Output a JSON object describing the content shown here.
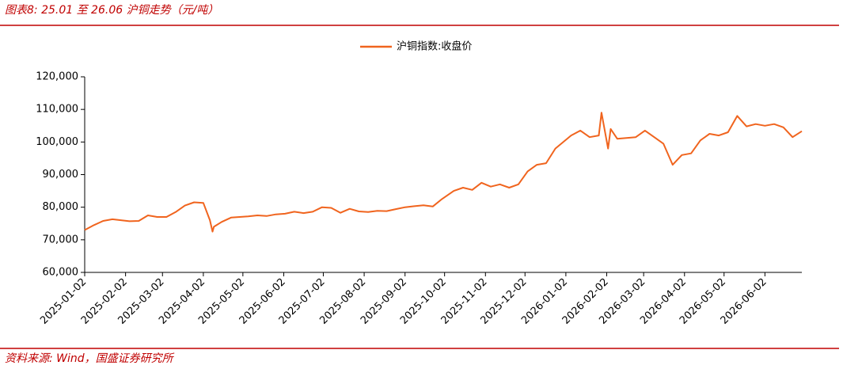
{
  "header": {
    "title": "图表8:  25.01 至 26.06 沪铜走势（元/吨）"
  },
  "footer": {
    "source": "资料来源:  Wind，国盛证券研究所"
  },
  "chart_data": {
    "type": "line",
    "x": [
      "2025-01-02",
      "2025-01-09",
      "2025-01-16",
      "2025-01-23",
      "2025-02-05",
      "2025-02-12",
      "2025-02-19",
      "2025-02-26",
      "2025-03-05",
      "2025-03-12",
      "2025-03-19",
      "2025-03-26",
      "2025-04-02",
      "2025-04-07",
      "2025-04-09",
      "2025-04-10",
      "2025-04-16",
      "2025-04-23",
      "2025-05-06",
      "2025-05-13",
      "2025-05-20",
      "2025-05-27",
      "2025-06-03",
      "2025-06-10",
      "2025-06-17",
      "2025-06-24",
      "2025-07-01",
      "2025-07-08",
      "2025-07-15",
      "2025-07-22",
      "2025-07-29",
      "2025-08-05",
      "2025-08-12",
      "2025-08-19",
      "2025-08-26",
      "2025-09-02",
      "2025-09-09",
      "2025-09-16",
      "2025-09-23",
      "2025-09-30",
      "2025-10-09",
      "2025-10-16",
      "2025-10-23",
      "2025-10-30",
      "2025-11-06",
      "2025-11-13",
      "2025-11-20",
      "2025-11-27",
      "2025-12-04",
      "2025-12-11",
      "2025-12-18",
      "2025-12-25",
      "2026-01-06",
      "2026-01-13",
      "2026-01-20",
      "2026-01-27",
      "2026-01-29",
      "2026-02-03",
      "2026-02-05",
      "2026-02-10",
      "2026-02-24",
      "2026-03-03",
      "2026-03-10",
      "2026-03-17",
      "2026-03-24",
      "2026-03-31",
      "2026-04-07",
      "2026-04-14",
      "2026-04-21",
      "2026-04-28",
      "2026-05-05",
      "2026-05-12",
      "2026-05-19",
      "2026-05-26",
      "2026-06-02",
      "2026-06-09",
      "2026-06-16",
      "2026-06-23",
      "2026-06-30"
    ],
    "series": [
      {
        "name": "沪铜指数:收盘价",
        "color": "#f0641e",
        "values": [
          73000,
          74500,
          75800,
          76300,
          75700,
          75800,
          77500,
          77000,
          77000,
          78500,
          80500,
          81500,
          81300,
          76000,
          72500,
          74000,
          75500,
          76800,
          77200,
          77500,
          77300,
          77800,
          78000,
          78600,
          78200,
          78600,
          80000,
          79800,
          78300,
          79500,
          78700,
          78500,
          78900,
          78800,
          79400,
          80000,
          80300,
          80600,
          80200,
          82500,
          85000,
          86000,
          85300,
          87500,
          86300,
          87000,
          86000,
          87000,
          91000,
          93000,
          93500,
          98000,
          102000,
          103500,
          101500,
          102000,
          109000,
          98000,
          104000,
          101000,
          101500,
          103500,
          101500,
          99500,
          93000,
          96000,
          96500,
          100500,
          102500,
          102000,
          103000,
          108000,
          104800,
          105500,
          105000,
          105500,
          104500,
          101500,
          103300
        ]
      }
    ],
    "xticks": [
      "2025-01-02",
      "2025-02-02",
      "2025-03-02",
      "2025-04-02",
      "2025-05-02",
      "2025-06-02",
      "2025-07-02",
      "2025-08-02",
      "2025-09-02",
      "2025-10-02",
      "2025-11-02",
      "2025-12-02",
      "2026-01-02",
      "2026-02-02",
      "2026-03-02",
      "2026-04-02",
      "2026-05-02",
      "2026-06-02"
    ],
    "ylim": [
      60000,
      120000
    ],
    "yticks": [
      {
        "value": 60000,
        "label": "60,000"
      },
      {
        "value": 70000,
        "label": "70,000"
      },
      {
        "value": 80000,
        "label": "80,000"
      },
      {
        "value": 90000,
        "label": "90,000"
      },
      {
        "value": 100000,
        "label": "100,000"
      },
      {
        "value": 110000,
        "label": "110,000"
      },
      {
        "value": 120000,
        "label": "120,000"
      }
    ],
    "grid": false
  }
}
